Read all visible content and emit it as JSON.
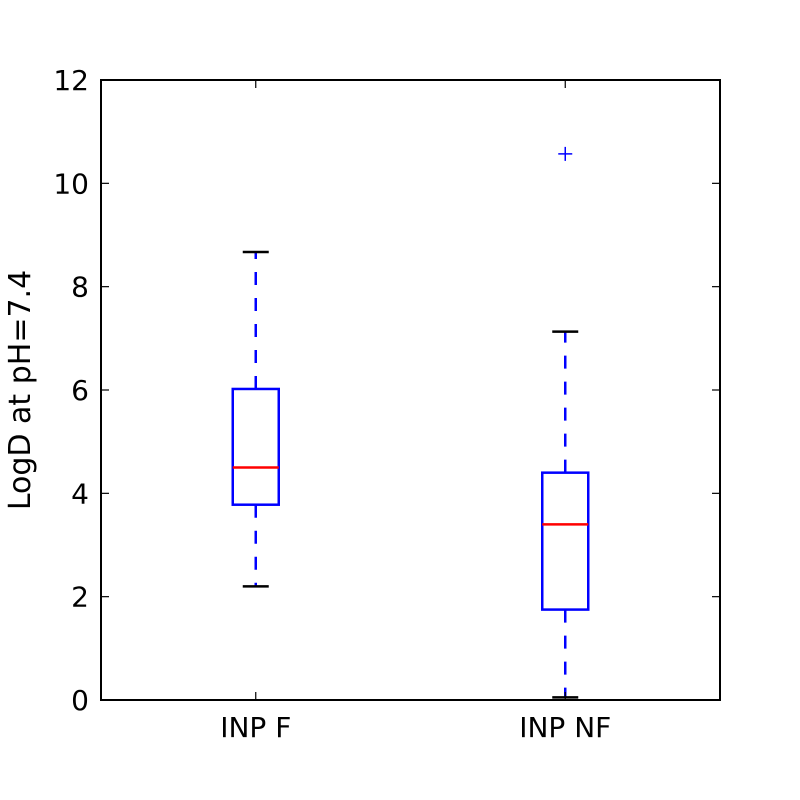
{
  "chart_data": {
    "type": "boxplot",
    "title": "",
    "xlabel": "",
    "ylabel": "LogD at pH=7.4",
    "ylim": [
      0,
      12
    ],
    "yticks": [
      0,
      2,
      4,
      6,
      8,
      10,
      12
    ],
    "categories": [
      "INP F",
      "INP NF"
    ],
    "boxes": [
      {
        "name": "INP F",
        "whisker_low": 2.2,
        "q1": 3.78,
        "median": 4.5,
        "q3": 6.02,
        "whisker_high": 8.67,
        "outliers": []
      },
      {
        "name": "INP NF",
        "whisker_low": 0.05,
        "q1": 1.75,
        "median": 3.4,
        "q3": 4.4,
        "whisker_high": 7.13,
        "outliers": [
          10.57
        ]
      }
    ],
    "colors": {
      "box": "#0000ff",
      "median": "#ff0000",
      "whisker": "#0000ff",
      "cap": "#000000",
      "outlier": "#0000ff"
    }
  }
}
